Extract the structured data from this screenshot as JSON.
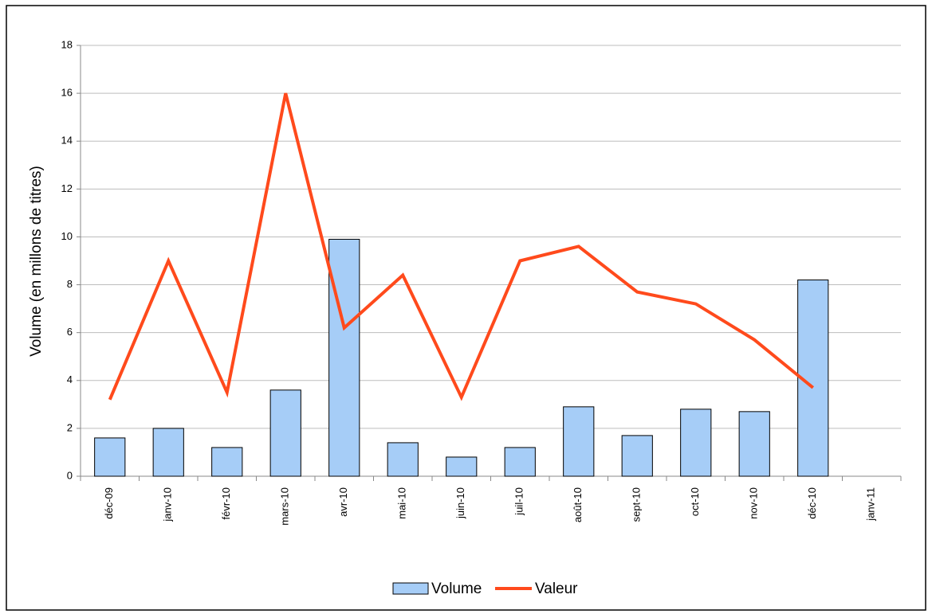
{
  "chart_data": {
    "type": "bar-line",
    "y_label": "Volume (en millons de titres)",
    "categories": [
      "déc-09",
      "janv-10",
      "févr-10",
      "mars-10",
      "avr-10",
      "mai-10",
      "juin-10",
      "juil-10",
      "août-10",
      "sept-10",
      "oct-10",
      "nov-10",
      "déc-10",
      "janv-11"
    ],
    "series": [
      {
        "name": "Volume",
        "type": "bar",
        "color": "#a6cdf7",
        "values": [
          1.6,
          2.0,
          1.2,
          3.6,
          9.9,
          1.4,
          0.8,
          1.2,
          2.9,
          1.7,
          2.8,
          2.7,
          8.2,
          null
        ]
      },
      {
        "name": "Valeur",
        "type": "line",
        "color": "#ff4a1c",
        "values": [
          3.2,
          9.0,
          3.5,
          16.0,
          6.2,
          8.4,
          3.3,
          9.0,
          9.6,
          7.7,
          7.2,
          5.7,
          3.7,
          null
        ]
      }
    ],
    "ylim": [
      0,
      18
    ],
    "yticks": [
      0,
      2,
      4,
      6,
      8,
      10,
      12,
      14,
      16,
      18
    ],
    "grid": true
  }
}
